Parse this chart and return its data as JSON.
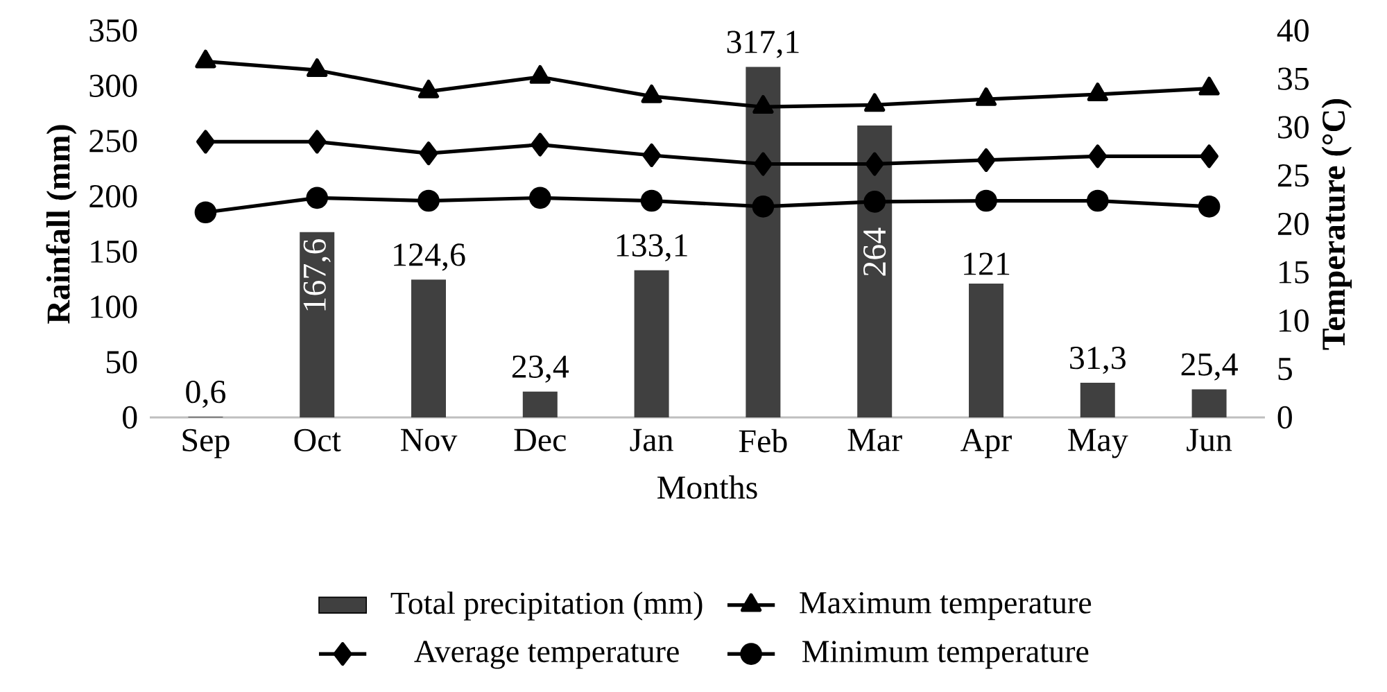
{
  "chart_data": {
    "type": "bar",
    "categories": [
      "Sep",
      "Oct",
      "Nov",
      "Dec",
      "Jan",
      "Feb",
      "Mar",
      "Apr",
      "May",
      "Jun"
    ],
    "xlabel": "Months",
    "ylabel": "Rainfall (mm)",
    "y2label": "Temperature (°C)",
    "ylim": [
      0,
      350
    ],
    "yticks": [
      0,
      50,
      100,
      150,
      200,
      250,
      300,
      350
    ],
    "y2lim": [
      0,
      40
    ],
    "y2ticks": [
      0,
      5,
      10,
      15,
      20,
      25,
      30,
      35,
      40
    ],
    "legend": "bottom",
    "series": [
      {
        "name": "Total precipitation (mm)",
        "color": "#404040",
        "values": [
          0.6,
          167.6,
          124.6,
          23.4,
          133.1,
          317.1,
          264,
          121,
          31.3,
          25.4
        ],
        "value_labels": [
          "0,6",
          "167,6",
          "124,6",
          "23,4",
          "133,1",
          "317,1",
          "264",
          "121",
          "31,3",
          "25,4"
        ]
      },
      {
        "name": "Maximum temperature",
        "type": "line",
        "axis": "y2",
        "marker": "triangle",
        "color": "#000000",
        "values": [
          36.8,
          35.9,
          33.7,
          35.2,
          33.2,
          32.1,
          32.3,
          32.9,
          33.4,
          34.0
        ]
      },
      {
        "name": "Average temperature",
        "type": "line",
        "axis": "y2",
        "marker": "diamond",
        "color": "#000000",
        "values": [
          28.5,
          28.5,
          27.3,
          28.2,
          27.1,
          26.2,
          26.2,
          26.6,
          27.0,
          27.0
        ]
      },
      {
        "name": "Minimum temperature",
        "type": "line",
        "axis": "y2",
        "marker": "circle",
        "color": "#000000",
        "values": [
          21.2,
          22.7,
          22.4,
          22.7,
          22.4,
          21.8,
          22.3,
          22.4,
          22.4,
          21.8
        ]
      }
    ]
  }
}
